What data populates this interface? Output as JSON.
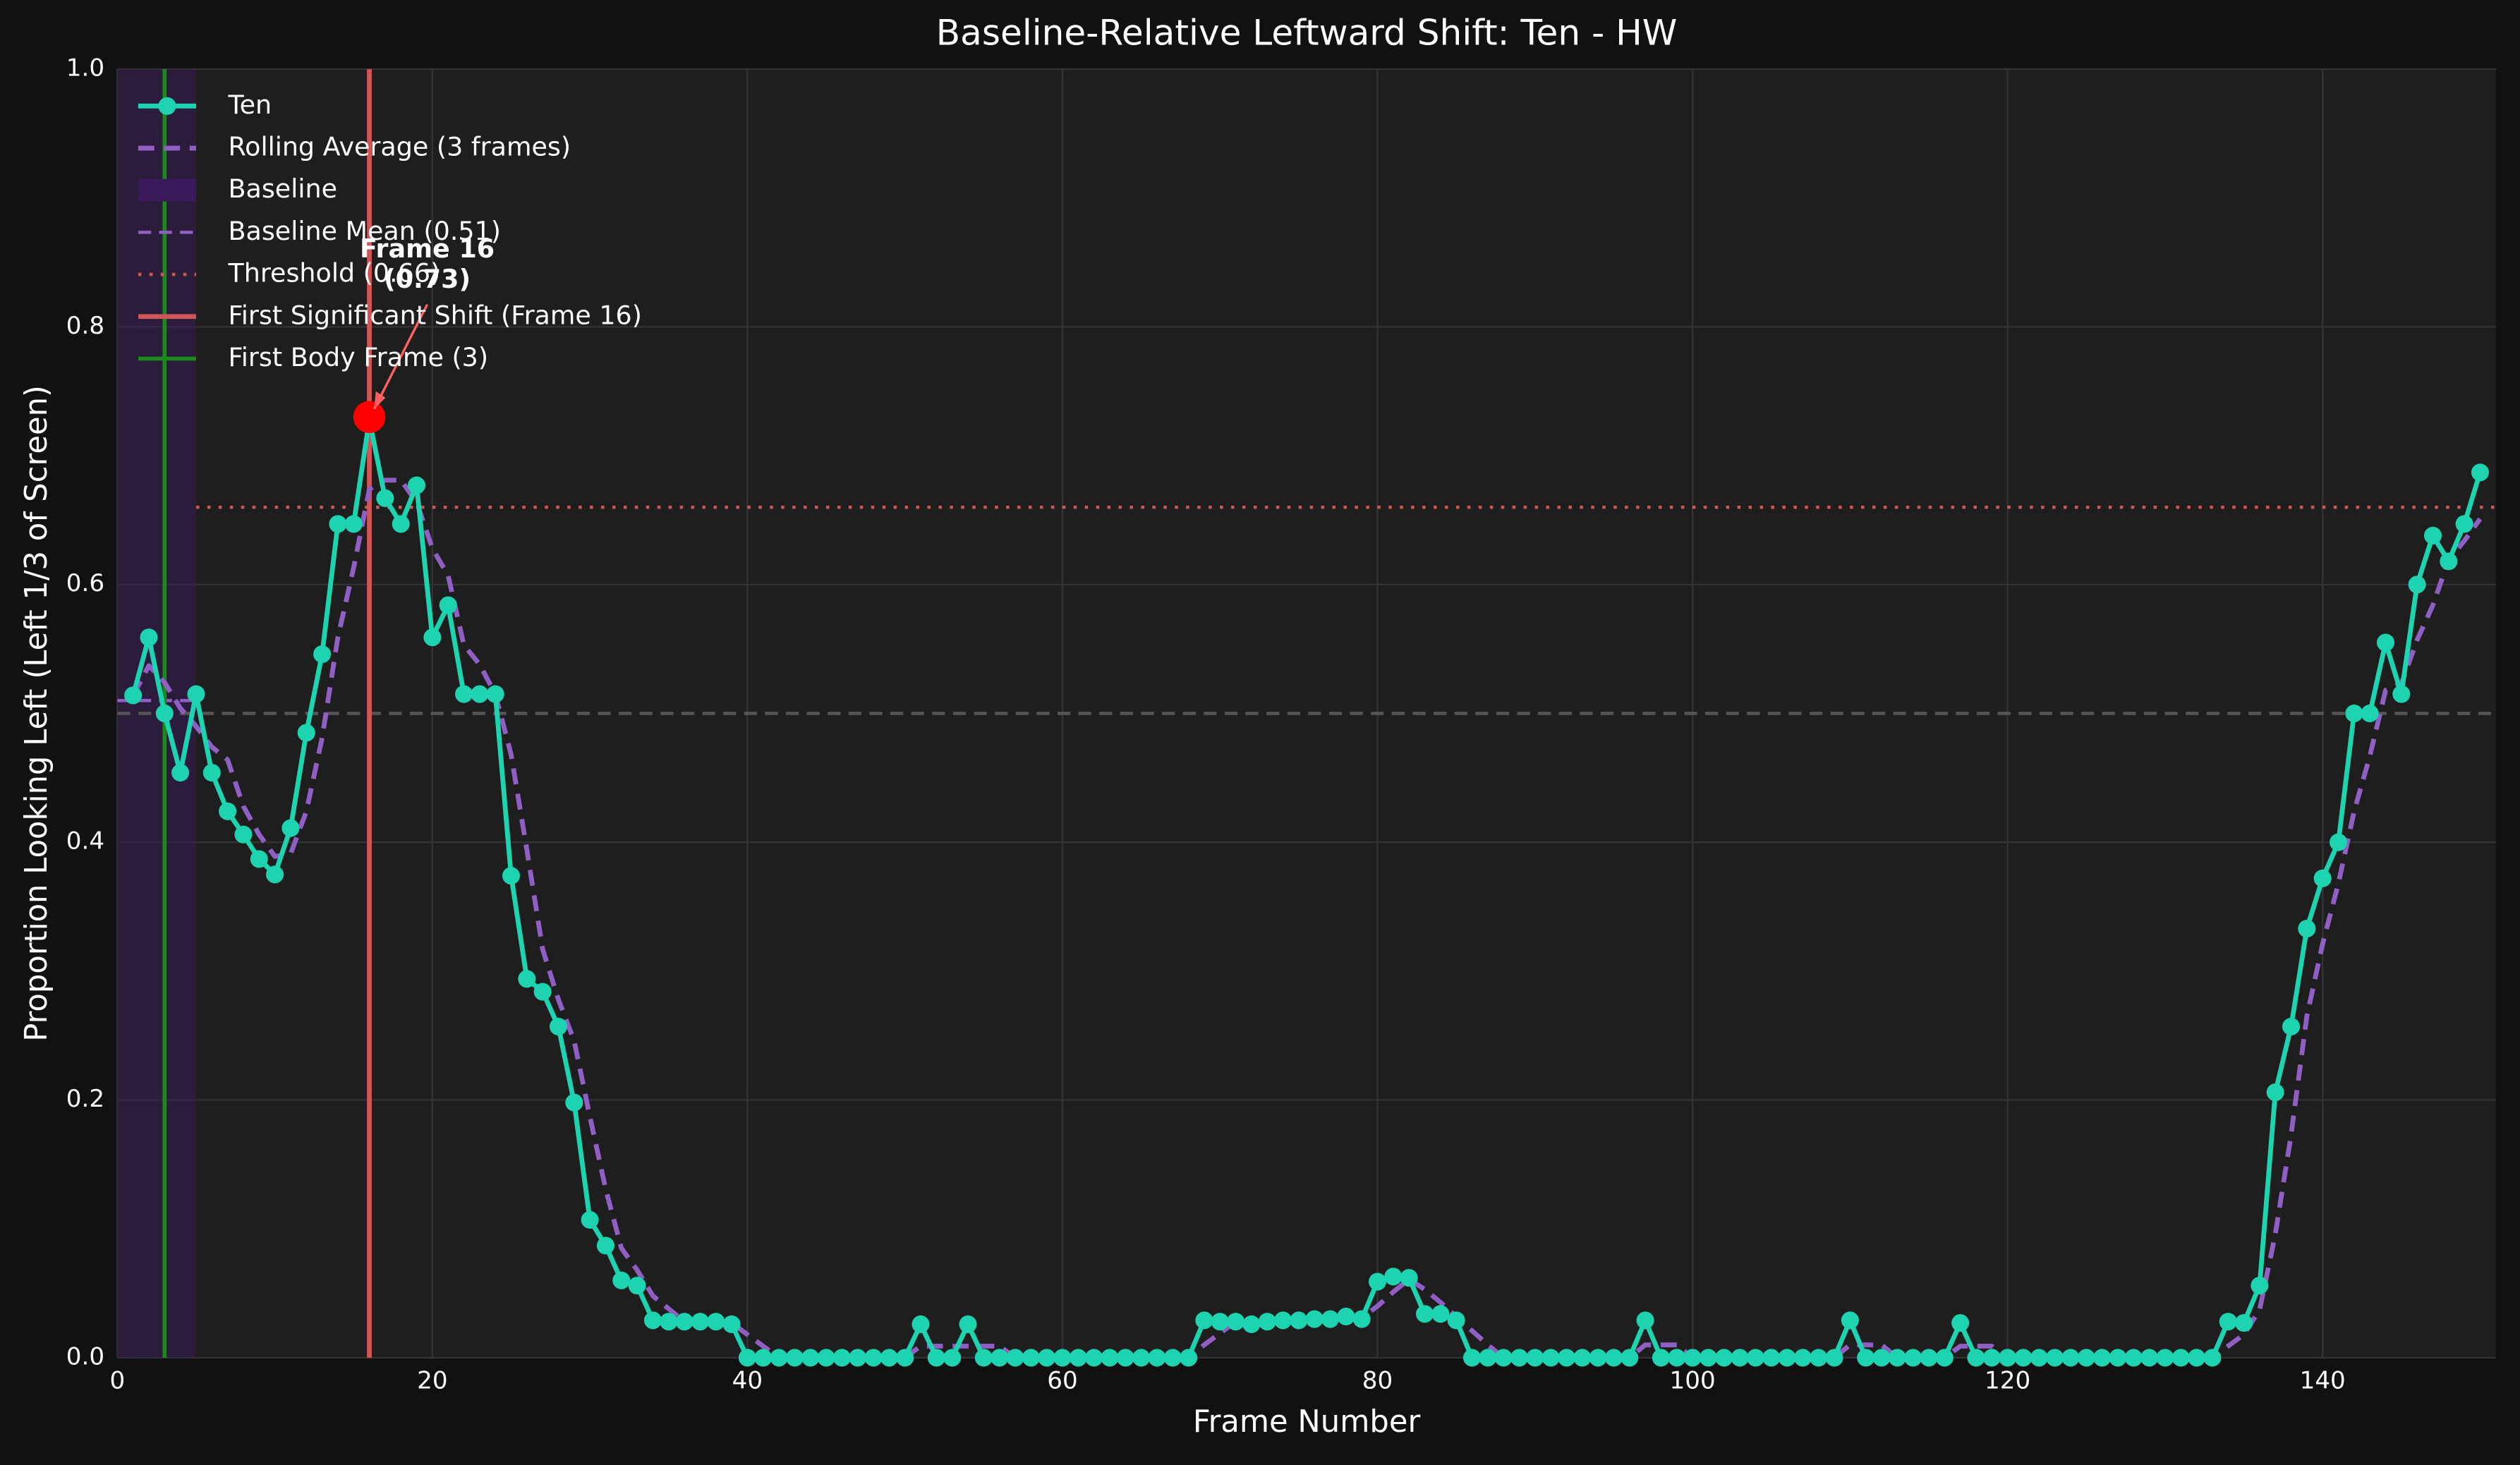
{
  "chart_data": {
    "type": "line",
    "title": "Baseline-Relative Leftward Shift: Ten - HW",
    "xlabel": "Frame Number",
    "ylabel": "Proportion Looking Left (Left 1/3 of Screen)",
    "xlim": [
      0,
      151
    ],
    "ylim": [
      0,
      1
    ],
    "xticks": [
      0,
      20,
      40,
      60,
      80,
      100,
      120,
      140
    ],
    "yticks": [
      {
        "value": 0,
        "label": "0.0"
      },
      0.2,
      0.4,
      0.6,
      0.8,
      {
        "value": 1,
        "label": "1.0"
      }
    ],
    "grid": true,
    "legend": "upper left",
    "x": [
      1,
      2,
      3,
      4,
      5,
      6,
      7,
      8,
      9,
      10,
      11,
      12,
      13,
      14,
      15,
      16,
      17,
      18,
      19,
      20,
      21,
      22,
      23,
      24,
      25,
      26,
      27,
      28,
      29,
      30,
      31,
      32,
      33,
      34,
      35,
      36,
      37,
      38,
      39,
      40,
      41,
      42,
      43,
      44,
      45,
      46,
      47,
      48,
      49,
      50,
      51,
      52,
      53,
      54,
      55,
      56,
      57,
      58,
      59,
      60,
      61,
      62,
      63,
      64,
      65,
      66,
      67,
      68,
      69,
      70,
      71,
      72,
      73,
      74,
      75,
      76,
      77,
      78,
      79,
      80,
      81,
      82,
      83,
      84,
      85,
      86,
      87,
      88,
      89,
      90,
      91,
      92,
      93,
      94,
      95,
      96,
      97,
      98,
      99,
      100,
      101,
      102,
      103,
      104,
      105,
      106,
      107,
      108,
      109,
      110,
      111,
      112,
      113,
      114,
      115,
      116,
      117,
      118,
      119,
      120,
      121,
      122,
      123,
      124,
      125,
      126,
      127,
      128,
      129,
      130,
      131,
      132,
      133,
      134,
      135,
      136,
      137,
      138,
      139,
      140,
      141,
      142,
      143,
      144,
      145,
      146,
      147,
      148,
      149,
      150
    ],
    "series": [
      {
        "name": "Ten",
        "color": "#1dd3b0",
        "style": "solid",
        "markers": true,
        "values": [
          0.514,
          0.559,
          0.5,
          0.454,
          0.515,
          0.454,
          0.424,
          0.406,
          0.387,
          0.375,
          0.411,
          0.485,
          0.546,
          0.647,
          0.647,
          0.728,
          0.667,
          0.647,
          0.677,
          0.559,
          0.584,
          0.515,
          0.515,
          0.515,
          0.374,
          0.294,
          0.284,
          0.257,
          0.198,
          0.107,
          0.087,
          0.06,
          0.056,
          0.029,
          0.028,
          0.028,
          0.028,
          0.028,
          0.026,
          0,
          0,
          0,
          0,
          0,
          0,
          0,
          0,
          0,
          0,
          0,
          0.026,
          0,
          0,
          0.026,
          0,
          0,
          0,
          0,
          0,
          0,
          0,
          0,
          0,
          0,
          0,
          0,
          0,
          0,
          0.029,
          0.028,
          0.028,
          0.026,
          0.028,
          0.029,
          0.029,
          0.03,
          0.03,
          0.032,
          0.03,
          0.059,
          0.063,
          0.062,
          0.034,
          0.034,
          0.029,
          0,
          0,
          0,
          0,
          0,
          0,
          0,
          0,
          0,
          0,
          0,
          0.029,
          0,
          0,
          0,
          0,
          0,
          0,
          0,
          0,
          0,
          0,
          0,
          0,
          0.029,
          0,
          0,
          0,
          0,
          0,
          0,
          0.027,
          0,
          0,
          0,
          0,
          0,
          0,
          0,
          0,
          0,
          0,
          0,
          0,
          0,
          0,
          0,
          0,
          0.028,
          0.027,
          0.056,
          0.206,
          0.257,
          0.333,
          0.372,
          0.4,
          0.5,
          0.5,
          0.555,
          0.515,
          0.6,
          0.638,
          0.618,
          0.647,
          0.687
        ]
      },
      {
        "name": "Rolling Average (3 frames)",
        "color": "#8f5fc4",
        "style": "dashed",
        "markers": false,
        "values": [
          0.514,
          0.537,
          0.524,
          0.504,
          0.49,
          0.474,
          0.464,
          0.428,
          0.406,
          0.389,
          0.391,
          0.424,
          0.481,
          0.559,
          0.613,
          0.674,
          0.681,
          0.681,
          0.664,
          0.628,
          0.607,
          0.553,
          0.538,
          0.515,
          0.468,
          0.394,
          0.317,
          0.278,
          0.246,
          0.187,
          0.131,
          0.085,
          0.068,
          0.048,
          0.038,
          0.028,
          0.028,
          0.028,
          0.027,
          0.018,
          0.009,
          0,
          0,
          0,
          0,
          0,
          0,
          0,
          0,
          0,
          0.009,
          0.009,
          0.009,
          0.009,
          0.009,
          0.009,
          0,
          0,
          0,
          0,
          0,
          0,
          0,
          0,
          0,
          0,
          0,
          0,
          0.01,
          0.019,
          0.028,
          0.027,
          0.027,
          0.028,
          0.029,
          0.029,
          0.03,
          0.031,
          0.031,
          0.04,
          0.051,
          0.061,
          0.053,
          0.043,
          0.032,
          0.021,
          0.01,
          0,
          0,
          0,
          0,
          0,
          0,
          0,
          0,
          0,
          0.01,
          0.01,
          0.01,
          0,
          0,
          0,
          0,
          0,
          0,
          0,
          0,
          0,
          0,
          0.01,
          0.01,
          0.01,
          0,
          0,
          0,
          0,
          0.009,
          0.009,
          0.009,
          0,
          0,
          0,
          0,
          0,
          0,
          0,
          0,
          0,
          0,
          0,
          0,
          0,
          0,
          0.009,
          0.018,
          0.037,
          0.096,
          0.173,
          0.265,
          0.321,
          0.368,
          0.424,
          0.467,
          0.518,
          0.523,
          0.557,
          0.584,
          0.619,
          0.634,
          0.651
        ]
      }
    ],
    "baseline": {
      "name": "Baseline",
      "start": 0,
      "end": 5,
      "color": "#3a1a5a"
    },
    "baseline_mean": {
      "name": "Baseline Mean (0.51)",
      "value": 0.51,
      "color": "#8f5fc4"
    },
    "reference_line": {
      "value": 0.5,
      "color": "#555555"
    },
    "threshold": {
      "name": "Threshold (0.66)",
      "value": 0.66,
      "start": 5,
      "color": "#d05555"
    },
    "first_shift": {
      "name": "First Significant Shift (Frame 16)",
      "x": 16,
      "color": "#d05555"
    },
    "first_body": {
      "name": "First Body Frame (3)",
      "x": 3,
      "color": "#1a8a1a"
    },
    "annotation": {
      "lines": [
        "Frame 16",
        "(0.73)"
      ],
      "x": 16,
      "y": 0.73,
      "color": "#ff0000"
    }
  }
}
